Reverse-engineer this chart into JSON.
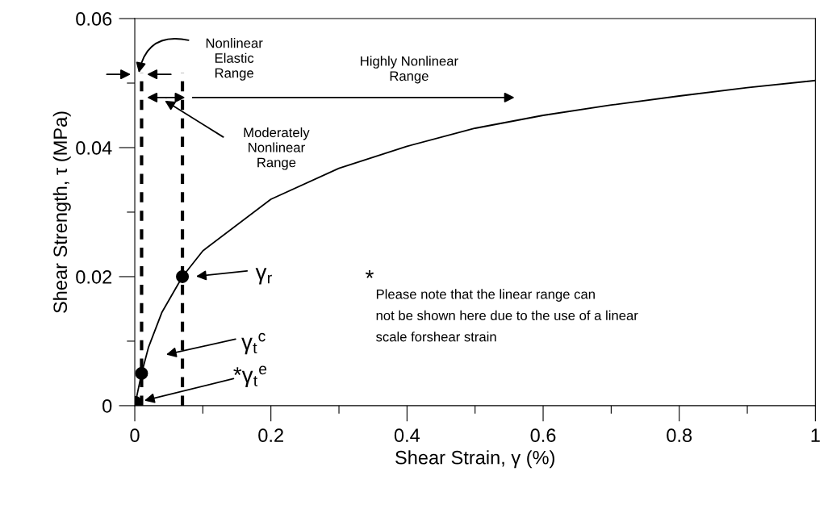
{
  "chart_data": {
    "type": "line",
    "xlabel": "Shear Strain, γ (%)",
    "ylabel": "Shear Strength, τ (MPa)",
    "xlim": [
      0,
      1
    ],
    "ylim": [
      0,
      0.06
    ],
    "xticks": [
      0,
      {
        "value": 0.1,
        "label": null
      },
      0.2,
      {
        "value": 0.3,
        "label": null
      },
      0.4,
      {
        "value": 0.5,
        "label": null
      },
      0.6,
      {
        "value": 0.7,
        "label": null
      },
      0.8,
      {
        "value": 0.9,
        "label": null
      },
      1
    ],
    "yticks": [
      0,
      {
        "value": 0.01,
        "label": null
      },
      0.02,
      {
        "value": 0.03,
        "label": null
      },
      0.04,
      {
        "value": 0.05,
        "label": null
      },
      0.06
    ],
    "grid": false,
    "legend": false,
    "series": [
      {
        "color": "#000000",
        "marker": "none",
        "x": [
          0.001,
          0.01,
          0.02,
          0.04,
          0.07,
          0.1,
          0.2,
          0.3,
          0.4,
          0.5,
          0.6,
          0.7,
          0.8,
          0.9,
          1.0
        ],
        "values": [
          0.0005,
          0.005,
          0.009,
          0.0145,
          0.02,
          0.024,
          0.032,
          0.0368,
          0.0402,
          0.043,
          0.045,
          0.0466,
          0.048,
          0.0493,
          0.0504
        ]
      },
      {
        "type": "scatter",
        "color": "#000000",
        "marker": "circle",
        "x": [
          0.001,
          0.01,
          0.07
        ],
        "values": [
          0.0005,
          0.005,
          0.02
        ]
      }
    ],
    "ref_lines": [
      {
        "axis": "x",
        "value": 0.01,
        "label": null,
        "color": "#000000",
        "line_style": "dashed"
      },
      {
        "axis": "x",
        "value": 0.07,
        "label": null,
        "color": "#000000",
        "line_style": "dashed"
      }
    ],
    "annotations": [
      "Nonlinear\nElastic\nRange",
      "Highly Nonlinear\nRange",
      "Moderately\nNonlinear\nRange",
      "γ$_{r}$",
      "γ$_{t}$$^{c}$",
      "*γ$_{t}$$^{e}$",
      "*",
      "Please note that the linear range can\nnot be shown here due to the use of a linear\nscale forshear strain"
    ]
  }
}
